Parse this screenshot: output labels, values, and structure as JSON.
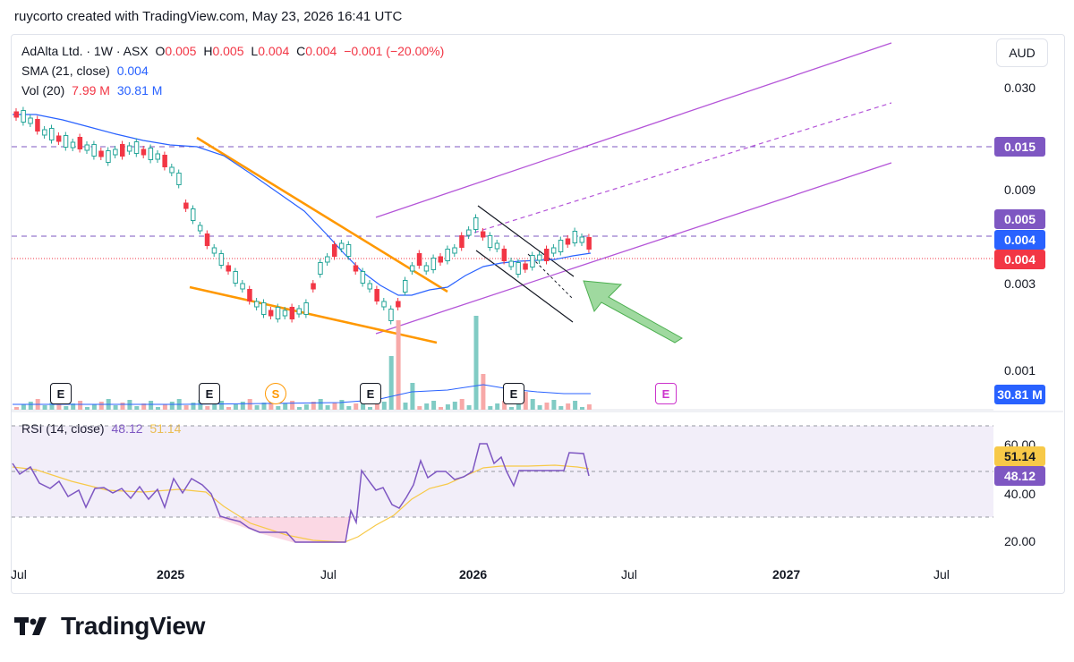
{
  "credit": "ruycorto created with TradingView.com, May 23, 2026 16:41 UTC",
  "legend": {
    "symbol": "AdAlta Ltd. · 1W · ASX",
    "o_label": "O",
    "o_value": "0.005",
    "h_label": "H",
    "h_value": "0.005",
    "l_label": "L",
    "l_value": "0.004",
    "c_label": "C",
    "c_value": "0.004",
    "change": "−0.001 (−20.00%)",
    "sma_label": "SMA (21, close)",
    "sma_value": "0.004",
    "vol_label": "Vol (20)",
    "vol_value1": "7.99 M",
    "vol_value2": "30.81 M",
    "rsi_label": "RSI (14, close)",
    "rsi_value1": "48.12",
    "rsi_value2": "51.14"
  },
  "currency": "AUD",
  "price_axis": [
    "0.030",
    "0.009",
    "0.003",
    "0.001"
  ],
  "price_tags": [
    {
      "text": "0.015",
      "color": "#7e57c2"
    },
    {
      "text": "0.005",
      "color": "#7e57c2"
    },
    {
      "text": "0.004",
      "color": "#2962ff"
    },
    {
      "text": "0.004",
      "color": "#f23645"
    },
    {
      "text": "30.81 M",
      "color": "#2962ff"
    }
  ],
  "rsi_axis": [
    "60.00",
    "40.00",
    "20.00"
  ],
  "rsi_tags": [
    {
      "text": "51.14",
      "color": "#f7c948"
    },
    {
      "text": "48.12",
      "color": "#7e57c2"
    }
  ],
  "time_axis": [
    "Jul",
    "2025",
    "Jul",
    "2026",
    "Jul",
    "2027",
    "Jul"
  ],
  "events": [
    "E",
    "E",
    "S",
    "E",
    "E",
    "E"
  ],
  "brand": "TradingView",
  "colors": {
    "up": "#26a69a",
    "down": "#f23645",
    "sma": "#2962ff",
    "channel": "#b455d8",
    "wedge": "#ff9800",
    "arrow": "#6cc56c",
    "rsi": "#7e57c2"
  },
  "chart_data": {
    "type": "candlestick",
    "symbol": "AdAlta Ltd.",
    "interval": "1W",
    "y_scale": "log",
    "ylim": [
      0.0008,
      0.045
    ],
    "series": [
      {
        "name": "SMA (21, close)",
        "last": 0.004
      },
      {
        "name": "Vol (20)",
        "last": "30.81 M"
      },
      {
        "name": "RSI (14, close)",
        "last": 48.12,
        "signal": 51.14
      }
    ],
    "horizontal_levels": [
      0.015,
      0.005
    ],
    "last_price": 0.004,
    "x_ticks": [
      "Jul",
      "2025",
      "Jul",
      "2026",
      "Jul",
      "2027",
      "Jul"
    ],
    "rsi_levels": [
      70,
      30
    ]
  }
}
